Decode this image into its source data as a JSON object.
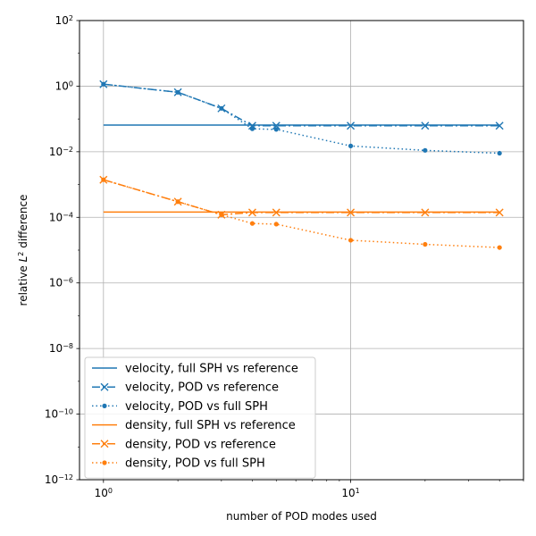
{
  "chart_data": {
    "type": "line",
    "title": "",
    "xlabel": "number of POD modes used",
    "ylabel_prefix": "relative ",
    "ylabel_base": "L",
    "ylabel_sup": "2",
    "ylabel_suffix": " difference",
    "xscale": "log",
    "yscale": "log",
    "xlim": [
      0.8,
      50
    ],
    "ylim": [
      1e-12,
      100
    ],
    "grid": true,
    "legend_position": "lower-left",
    "x_ticks": [
      {
        "value": 1,
        "base": "10",
        "exp": "0"
      },
      {
        "value": 10,
        "base": "10",
        "exp": "1"
      }
    ],
    "y_ticks": [
      {
        "value": 100,
        "base": "10",
        "exp": "2"
      },
      {
        "value": 1,
        "base": "10",
        "exp": "0"
      },
      {
        "value": 0.01,
        "base": "10",
        "exp": "−2"
      },
      {
        "value": 0.0001,
        "base": "10",
        "exp": "−4"
      },
      {
        "value": 1e-06,
        "base": "10",
        "exp": "−6"
      },
      {
        "value": 1e-08,
        "base": "10",
        "exp": "−8"
      },
      {
        "value": 1e-10,
        "base": "10",
        "exp": "−10"
      },
      {
        "value": 1e-12,
        "base": "10",
        "exp": "−12"
      }
    ],
    "series": [
      {
        "name": "velocity, full SPH vs reference",
        "color": "#1f77b4",
        "dash": "solid",
        "marker": "none",
        "x": [
          1,
          40
        ],
        "y": [
          0.065,
          0.065
        ]
      },
      {
        "name": "velocity, POD vs reference",
        "color": "#1f77b4",
        "dash": "dashdot",
        "marker": "x",
        "x": [
          1,
          2,
          3,
          4,
          5,
          10,
          20,
          40
        ],
        "y": [
          1.15,
          0.65,
          0.21,
          0.062,
          0.062,
          0.062,
          0.062,
          0.062
        ]
      },
      {
        "name": "velocity, POD vs full SPH",
        "color": "#1f77b4",
        "dash": "dotted",
        "marker": "dot",
        "x": [
          1,
          2,
          3,
          4,
          5,
          10,
          20,
          40
        ],
        "y": [
          1.15,
          0.65,
          0.21,
          0.05,
          0.048,
          0.015,
          0.011,
          0.009
        ]
      },
      {
        "name": "density, full SPH vs reference",
        "color": "#ff7f0e",
        "dash": "solid",
        "marker": "none",
        "x": [
          1,
          40
        ],
        "y": [
          0.000145,
          0.000145
        ]
      },
      {
        "name": "density, POD vs reference",
        "color": "#ff7f0e",
        "dash": "dashdot",
        "marker": "x",
        "x": [
          1,
          2,
          3,
          4,
          5,
          10,
          20,
          40
        ],
        "y": [
          0.0014,
          0.0003,
          0.00012,
          0.00014,
          0.00014,
          0.00014,
          0.00014,
          0.00014
        ]
      },
      {
        "name": "density, POD vs full SPH",
        "color": "#ff7f0e",
        "dash": "dotted",
        "marker": "dot",
        "x": [
          1,
          2,
          3,
          4,
          5,
          10,
          20,
          40
        ],
        "y": [
          0.0014,
          0.0003,
          0.00012,
          6.5e-05,
          6.2e-05,
          2e-05,
          1.5e-05,
          1.2e-05
        ]
      }
    ]
  }
}
